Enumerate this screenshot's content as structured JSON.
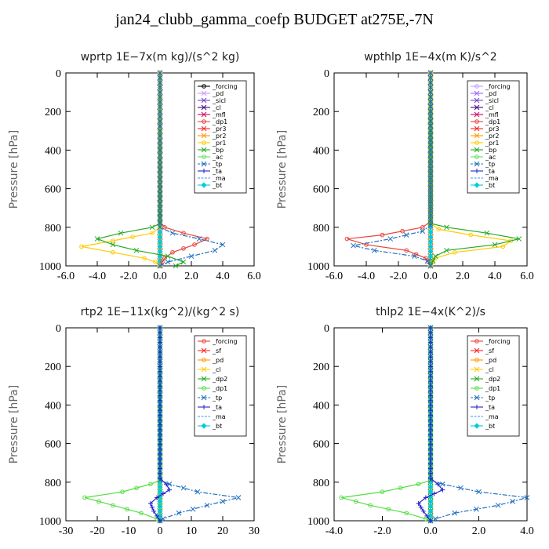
{
  "title": "jan24_clubb_gamma_coefp  BUDGET at275E,-7N",
  "chart_data": [
    {
      "type": "line",
      "title": "wprtp  1E−7x(m kg)/(s^2 kg)",
      "ylabel": "Pressure [hPa]",
      "xlim": [
        -6,
        6
      ],
      "ylim": [
        0,
        1000
      ],
      "xticks": [
        -6,
        -4,
        -2,
        0,
        2,
        4,
        6
      ],
      "xticklabels": [
        "-6.0",
        "-4.0",
        "-2.0",
        "0.0",
        "2.0",
        "4.0",
        "6.0"
      ],
      "yticks": [
        0,
        200,
        400,
        600,
        800,
        1000
      ],
      "yticklabels": [
        "0",
        "200",
        "400",
        "600",
        "800",
        "1000"
      ],
      "legend_position": "top-right",
      "series": [
        {
          "name": "_forcing",
          "color": "#000000",
          "marker": "o",
          "dash": "",
          "x": [
            0,
            0,
            0
          ],
          "y": [
            0,
            500,
            1000
          ]
        },
        {
          "name": "_pd",
          "color": "#cc99ff",
          "marker": "x",
          "dash": "",
          "x": [
            0,
            0
          ],
          "y": [
            0,
            1000
          ]
        },
        {
          "name": "_sicl",
          "color": "#7744cc",
          "marker": "x",
          "dash": "",
          "x": [
            0,
            0
          ],
          "y": [
            0,
            1000
          ]
        },
        {
          "name": "_cl",
          "color": "#4b0082",
          "marker": "x",
          "dash": "",
          "x": [
            0,
            0,
            0
          ],
          "y": [
            0,
            500,
            1000
          ]
        },
        {
          "name": "_mfl",
          "color": "#cc0066",
          "marker": "x",
          "dash": "",
          "x": [
            0,
            0
          ],
          "y": [
            0,
            1000
          ]
        },
        {
          "name": "_dp1",
          "color": "#e8443a",
          "marker": "o",
          "dash": "",
          "x": [
            0,
            0,
            0.3,
            1.5,
            3.0,
            2.2,
            0.8,
            0.3,
            0
          ],
          "y": [
            0,
            770,
            800,
            830,
            860,
            890,
            930,
            960,
            1000
          ]
        },
        {
          "name": "_pr3",
          "color": "#ff2222",
          "marker": "x",
          "dash": "",
          "x": [
            0,
            0
          ],
          "y": [
            0,
            1000
          ]
        },
        {
          "name": "_pr2",
          "color": "#ff9900",
          "marker": "x",
          "dash": "",
          "x": [
            0,
            0
          ],
          "y": [
            0,
            1000
          ]
        },
        {
          "name": "_pr1",
          "color": "#ffcc00",
          "marker": "o",
          "dash": "",
          "x": [
            0,
            0,
            -0.5,
            -3.0,
            -5.0,
            -3.0,
            -1.0,
            -0.3,
            0
          ],
          "y": [
            0,
            800,
            830,
            870,
            900,
            930,
            960,
            980,
            1000
          ]
        },
        {
          "name": "_bp",
          "color": "#22aa22",
          "marker": "x",
          "dash": "",
          "x": [
            0,
            0,
            -0.5,
            -2.5,
            -4.0,
            -3.0,
            -1.5,
            0.5,
            1.5,
            1.0
          ],
          "y": [
            0,
            780,
            800,
            830,
            860,
            890,
            920,
            950,
            980,
            1000
          ]
        },
        {
          "name": "_ac",
          "color": "#66dd66",
          "marker": "o",
          "dash": "",
          "x": [
            0,
            0
          ],
          "y": [
            0,
            1000
          ]
        },
        {
          "name": "_tp",
          "color": "#1f6fbf",
          "marker": "x",
          "dash": "6,2,2,2",
          "x": [
            0,
            0,
            0.8,
            2.5,
            4.0,
            3.5,
            2.0,
            0.5,
            0
          ],
          "y": [
            0,
            800,
            830,
            860,
            890,
            920,
            950,
            980,
            1000
          ]
        },
        {
          "name": "_ta",
          "color": "#2222cc",
          "marker": "+",
          "dash": "",
          "x": [
            0,
            0
          ],
          "y": [
            0,
            1000
          ]
        },
        {
          "name": "_ma",
          "color": "#3399ff",
          "marker": "",
          "dash": "8,3",
          "x": [
            0,
            0
          ],
          "y": [
            0,
            1000
          ]
        },
        {
          "name": "_bt",
          "color": "#00ccdd",
          "marker": "d",
          "dash": "",
          "x": [
            0,
            0,
            0
          ],
          "y": [
            0,
            500,
            1000
          ]
        }
      ]
    },
    {
      "type": "line",
      "title": "wpthlp  1E−4x(m K)/s^2",
      "ylabel": "Pressure [hPa]",
      "xlim": [
        -6,
        6
      ],
      "ylim": [
        0,
        1000
      ],
      "xticks": [
        -6,
        -4,
        -2,
        0,
        2,
        4,
        6
      ],
      "xticklabels": [
        "-6.0",
        "-4.0",
        "-2.0",
        "0.0",
        "2.0",
        "4.0",
        "6.0"
      ],
      "yticks": [
        0,
        200,
        400,
        600,
        800,
        1000
      ],
      "yticklabels": [
        "0",
        "200",
        "400",
        "600",
        "800",
        "1000"
      ],
      "legend_position": "top-right",
      "series": [
        {
          "name": "_forcing",
          "color": "#cc99ff",
          "marker": "o",
          "dash": "",
          "x": [
            0,
            0
          ],
          "y": [
            0,
            1000
          ]
        },
        {
          "name": "_pd",
          "color": "#9966ff",
          "marker": "x",
          "dash": "",
          "x": [
            0,
            0
          ],
          "y": [
            0,
            1000
          ]
        },
        {
          "name": "_sicl",
          "color": "#7744cc",
          "marker": "x",
          "dash": "",
          "x": [
            0,
            0
          ],
          "y": [
            0,
            1000
          ]
        },
        {
          "name": "_cl",
          "color": "#4b0082",
          "marker": "x",
          "dash": "",
          "x": [
            0,
            0
          ],
          "y": [
            0,
            1000
          ]
        },
        {
          "name": "_mfl",
          "color": "#cc0066",
          "marker": "x",
          "dash": "",
          "x": [
            0,
            0
          ],
          "y": [
            0,
            1000
          ]
        },
        {
          "name": "_dp1",
          "color": "#e8443a",
          "marker": "o",
          "dash": "",
          "x": [
            0,
            0,
            -0.5,
            -3.0,
            -5.2,
            -4.0,
            -1.5,
            -0.3,
            0
          ],
          "y": [
            0,
            770,
            800,
            840,
            860,
            890,
            920,
            960,
            1000
          ]
        },
        {
          "name": "_pr3",
          "color": "#ff2222",
          "marker": "x",
          "dash": "",
          "x": [
            0,
            0
          ],
          "y": [
            0,
            1000
          ]
        },
        {
          "name": "_pr2",
          "color": "#ff9900",
          "marker": "x",
          "dash": "",
          "x": [
            0,
            0
          ],
          "y": [
            0,
            1000
          ]
        },
        {
          "name": "_pr1",
          "color": "#ffcc00",
          "marker": "o",
          "dash": "",
          "x": [
            0,
            0,
            0.5,
            2.5,
            5.0,
            4.5,
            1.5,
            0.3,
            0
          ],
          "y": [
            0,
            780,
            810,
            840,
            870,
            900,
            930,
            960,
            1000
          ]
        },
        {
          "name": "_bp",
          "color": "#22aa22",
          "marker": "x",
          "dash": "",
          "x": [
            0,
            0,
            1.0,
            3.5,
            5.5,
            4.0,
            1.0,
            0.3,
            0
          ],
          "y": [
            0,
            780,
            800,
            830,
            860,
            890,
            920,
            950,
            1000
          ]
        },
        {
          "name": "_ac",
          "color": "#66dd66",
          "marker": "o",
          "dash": "",
          "x": [
            0,
            0
          ],
          "y": [
            0,
            1000
          ]
        },
        {
          "name": "_tp",
          "color": "#1f6fbf",
          "marker": "x",
          "dash": "6,2,2,2",
          "x": [
            0,
            0,
            -0.5,
            -2.5,
            -4.8,
            -3.5,
            -1.0,
            -0.2,
            0
          ],
          "y": [
            0,
            790,
            820,
            860,
            895,
            920,
            950,
            975,
            1000
          ]
        },
        {
          "name": "_ta",
          "color": "#2222cc",
          "marker": "+",
          "dash": "",
          "x": [
            0,
            0
          ],
          "y": [
            0,
            1000
          ]
        },
        {
          "name": "_ma",
          "color": "#3399ff",
          "marker": "",
          "dash": "8,3",
          "x": [
            0,
            0
          ],
          "y": [
            0,
            1000
          ]
        },
        {
          "name": "_bt",
          "color": "#00ccdd",
          "marker": "d",
          "dash": "",
          "x": [
            0,
            0,
            0
          ],
          "y": [
            0,
            500,
            1000
          ]
        }
      ]
    },
    {
      "type": "line",
      "title": "rtp2  1E−11x(kg^2)/(kg^2 s)",
      "ylabel": "Pressure [hPa]",
      "xlim": [
        -30,
        30
      ],
      "ylim": [
        0,
        1000
      ],
      "xticks": [
        -30,
        -20,
        -10,
        0,
        10,
        20,
        30
      ],
      "xticklabels": [
        "-30",
        "-20",
        "-10",
        "0",
        "10",
        "20",
        "30"
      ],
      "yticks": [
        0,
        200,
        400,
        600,
        800,
        1000
      ],
      "yticklabels": [
        "0",
        "200",
        "400",
        "600",
        "800",
        "1000"
      ],
      "legend_position": "top-right",
      "series": [
        {
          "name": "_forcing",
          "color": "#e8443a",
          "marker": "o",
          "dash": "",
          "x": [
            0,
            0,
            0
          ],
          "y": [
            0,
            500,
            1000
          ]
        },
        {
          "name": "_sf",
          "color": "#ff2222",
          "marker": "x",
          "dash": "",
          "x": [
            0,
            0
          ],
          "y": [
            0,
            1000
          ]
        },
        {
          "name": "_pd",
          "color": "#ff9900",
          "marker": "o",
          "dash": "",
          "x": [
            0,
            0
          ],
          "y": [
            0,
            1000
          ]
        },
        {
          "name": "_cl",
          "color": "#ffcc00",
          "marker": "x",
          "dash": "",
          "x": [
            0,
            0
          ],
          "y": [
            0,
            1000
          ]
        },
        {
          "name": "_dp2",
          "color": "#22aa22",
          "marker": "x",
          "dash": "",
          "x": [
            0,
            0
          ],
          "y": [
            0,
            1000
          ]
        },
        {
          "name": "_dp1",
          "color": "#55dd44",
          "marker": "o",
          "dash": "",
          "x": [
            0,
            0,
            -3,
            -12,
            -24,
            -15,
            -6,
            -1,
            0
          ],
          "y": [
            0,
            790,
            810,
            850,
            880,
            920,
            960,
            990,
            1000
          ]
        },
        {
          "name": "_tp",
          "color": "#1f6fbf",
          "marker": "x",
          "dash": "6,2,2,2",
          "x": [
            0,
            0,
            3,
            12,
            25,
            15,
            6,
            1,
            0
          ],
          "y": [
            0,
            790,
            810,
            850,
            880,
            920,
            960,
            990,
            1000
          ]
        },
        {
          "name": "_ta",
          "color": "#2222cc",
          "marker": "+",
          "dash": "",
          "x": [
            0,
            0,
            2,
            3,
            -1,
            -3,
            -2,
            0
          ],
          "y": [
            0,
            780,
            810,
            840,
            880,
            910,
            950,
            1000
          ]
        },
        {
          "name": "_ma",
          "color": "#3399ff",
          "marker": "",
          "dash": "8,3",
          "x": [
            0,
            0
          ],
          "y": [
            0,
            1000
          ]
        },
        {
          "name": "_bt",
          "color": "#00ccdd",
          "marker": "d",
          "dash": "",
          "x": [
            0,
            0,
            0
          ],
          "y": [
            0,
            500,
            1000
          ]
        }
      ]
    },
    {
      "type": "line",
      "title": "thlp2  1E−4x(K^2)/s",
      "ylabel": "Pressure [hPa]",
      "xlim": [
        -4,
        4
      ],
      "ylim": [
        0,
        1000
      ],
      "xticks": [
        -4,
        -2,
        0,
        2,
        4
      ],
      "xticklabels": [
        "-4.0",
        "-2.0",
        "0.0",
        "2.0",
        "4.0"
      ],
      "yticks": [
        0,
        200,
        400,
        600,
        800,
        1000
      ],
      "yticklabels": [
        "0",
        "200",
        "400",
        "600",
        "800",
        "1000"
      ],
      "legend_position": "top-right",
      "series": [
        {
          "name": "_forcing",
          "color": "#e8443a",
          "marker": "o",
          "dash": "",
          "x": [
            0,
            0,
            0
          ],
          "y": [
            0,
            500,
            1000
          ]
        },
        {
          "name": "_sf",
          "color": "#ff2222",
          "marker": "x",
          "dash": "",
          "x": [
            0,
            0
          ],
          "y": [
            0,
            1000
          ]
        },
        {
          "name": "_pd",
          "color": "#ff9900",
          "marker": "o",
          "dash": "",
          "x": [
            0,
            0
          ],
          "y": [
            0,
            1000
          ]
        },
        {
          "name": "_cl",
          "color": "#ffcc00",
          "marker": "x",
          "dash": "",
          "x": [
            0,
            0
          ],
          "y": [
            0,
            1000
          ]
        },
        {
          "name": "_dp2",
          "color": "#22aa22",
          "marker": "x",
          "dash": "",
          "x": [
            0,
            0
          ],
          "y": [
            0,
            1000
          ]
        },
        {
          "name": "_dp1",
          "color": "#55dd44",
          "marker": "o",
          "dash": "",
          "x": [
            0,
            0,
            -0.5,
            -2.0,
            -3.7,
            -2.5,
            -1.0,
            -0.2,
            0
          ],
          "y": [
            0,
            790,
            810,
            850,
            880,
            920,
            960,
            990,
            1000
          ]
        },
        {
          "name": "_tp",
          "color": "#1f6fbf",
          "marker": "x",
          "dash": "6,2,2,2",
          "x": [
            0,
            0,
            0.5,
            2.0,
            4.0,
            2.8,
            1.0,
            0.2,
            0
          ],
          "y": [
            0,
            790,
            810,
            850,
            880,
            920,
            960,
            990,
            1000
          ]
        },
        {
          "name": "_ta",
          "color": "#2222cc",
          "marker": "+",
          "dash": "",
          "x": [
            0,
            0,
            0.3,
            0.5,
            -0.2,
            -0.5,
            -0.3,
            0
          ],
          "y": [
            0,
            780,
            810,
            840,
            880,
            910,
            950,
            1000
          ]
        },
        {
          "name": "_ma",
          "color": "#3399ff",
          "marker": "",
          "dash": "8,3",
          "x": [
            0,
            0
          ],
          "y": [
            0,
            1000
          ]
        },
        {
          "name": "_bt",
          "color": "#00ccdd",
          "marker": "d",
          "dash": "",
          "x": [
            0,
            0,
            0
          ],
          "y": [
            0,
            500,
            1000
          ]
        }
      ]
    }
  ]
}
